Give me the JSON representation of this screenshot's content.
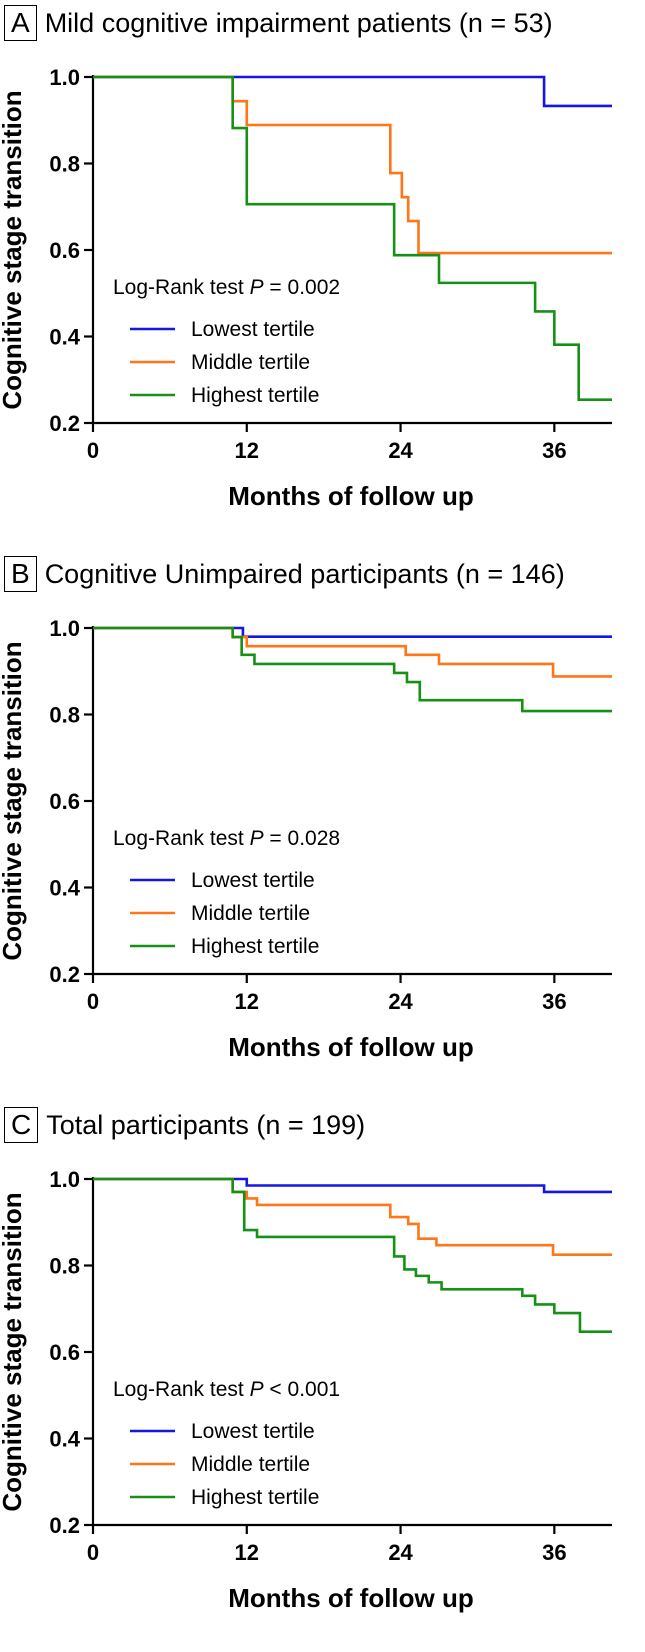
{
  "colors": {
    "lowest": "#1515e8",
    "middle": "#ff7518",
    "highest": "#169116"
  },
  "chart_data": [
    {
      "type": "line",
      "subtype": "kaplan-meier step",
      "panel_label": "A",
      "title": "Mild cognitive impairment patients (n = 53)",
      "xlabel": "Months of follow up",
      "ylabel": "Cognitive stage transition",
      "xlim": [
        0,
        40.5
      ],
      "ylim": [
        0.2,
        1.0
      ],
      "x_ticks": [
        0,
        12,
        24,
        36
      ],
      "y_ticks": [
        0.2,
        0.4,
        0.6,
        0.8,
        1.0
      ],
      "y_tick_labels": [
        "0.2",
        "0.4",
        "0.6",
        "0.8",
        "1.0"
      ],
      "legend_title_prefix": "Log-Rank test ",
      "legend_p": "P",
      "legend_title_value": " = 0.002",
      "series": [
        {
          "name": "Lowest tertile",
          "color_key": "lowest",
          "x": [
            0,
            35.2,
            40.5
          ],
          "y": [
            1.0,
            0.933,
            0.933
          ]
        },
        {
          "name": "Middle tertile",
          "color_key": "middle",
          "x": [
            0,
            10.9,
            11.4,
            12.0,
            23.2,
            24.1,
            24.6,
            25.4,
            40.5
          ],
          "y": [
            1.0,
            0.944,
            0.944,
            0.889,
            0.778,
            0.722,
            0.667,
            0.593,
            0.593
          ]
        },
        {
          "name": "Highest tertile",
          "color_key": "highest",
          "x": [
            0,
            10.9,
            12.0,
            23.5,
            27.0,
            34.5,
            36.0,
            37.9,
            40.5
          ],
          "y": [
            1.0,
            0.882,
            0.706,
            0.588,
            0.524,
            0.458,
            0.381,
            0.254,
            0.254
          ]
        }
      ]
    },
    {
      "type": "line",
      "subtype": "kaplan-meier step",
      "panel_label": "B",
      "title": "Cognitive Unimpaired participants (n = 146)",
      "xlabel": "Months of follow up",
      "ylabel": "Cognitive stage transition",
      "xlim": [
        0,
        40.5
      ],
      "ylim": [
        0.2,
        1.0
      ],
      "x_ticks": [
        0,
        12,
        24,
        36
      ],
      "y_ticks": [
        0.2,
        0.4,
        0.6,
        0.8,
        1.0
      ],
      "y_tick_labels": [
        "0.2",
        "0.4",
        "0.6",
        "0.8",
        "1.0"
      ],
      "legend_title_prefix": "Log-Rank test ",
      "legend_p": "P",
      "legend_title_value": " = 0.028",
      "series": [
        {
          "name": "Lowest tertile",
          "color_key": "lowest",
          "x": [
            0,
            11.7,
            40.5
          ],
          "y": [
            1.0,
            0.98,
            0.98
          ]
        },
        {
          "name": "Middle tertile",
          "color_key": "middle",
          "x": [
            0,
            10.9,
            12.0,
            12.8,
            24.4,
            27.0,
            35.9,
            40.5
          ],
          "y": [
            1.0,
            0.979,
            0.958,
            0.958,
            0.938,
            0.917,
            0.888,
            0.888
          ]
        },
        {
          "name": "Highest tertile",
          "color_key": "highest",
          "x": [
            0,
            10.9,
            11.6,
            12.6,
            18.5,
            23.5,
            24.5,
            25.5,
            33.5,
            40.5
          ],
          "y": [
            1.0,
            0.979,
            0.938,
            0.917,
            0.917,
            0.896,
            0.875,
            0.833,
            0.808,
            0.808
          ]
        }
      ]
    },
    {
      "type": "line",
      "subtype": "kaplan-meier step",
      "panel_label": "C",
      "title": "Total participants (n = 199)",
      "xlabel": "Months of follow up",
      "ylabel": "Cognitive stage transition",
      "xlim": [
        0,
        40.5
      ],
      "ylim": [
        0.2,
        1.0
      ],
      "x_ticks": [
        0,
        12,
        24,
        36
      ],
      "y_ticks": [
        0.2,
        0.4,
        0.6,
        0.8,
        1.0
      ],
      "y_tick_labels": [
        "0.2",
        "0.4",
        "0.6",
        "0.8",
        "1.0"
      ],
      "legend_title_prefix": "Log-Rank test ",
      "legend_p": "P",
      "legend_title_value": " < 0.001",
      "series": [
        {
          "name": "Lowest tertile",
          "color_key": "lowest",
          "x": [
            0,
            12.0,
            35.2,
            40.5
          ],
          "y": [
            1.0,
            0.985,
            0.97,
            0.97
          ]
        },
        {
          "name": "Middle tertile",
          "color_key": "middle",
          "x": [
            0,
            10.9,
            12.0,
            12.8,
            23.2,
            24.6,
            25.4,
            26.8,
            35.9,
            40.5
          ],
          "y": [
            1.0,
            0.97,
            0.955,
            0.94,
            0.912,
            0.896,
            0.862,
            0.847,
            0.825,
            0.825
          ]
        },
        {
          "name": "Highest tertile",
          "color_key": "highest",
          "x": [
            0,
            10.9,
            11.8,
            12.8,
            23.5,
            24.3,
            25.2,
            26.2,
            27.2,
            33.5,
            34.5,
            36.0,
            38.0,
            40.5
          ],
          "y": [
            1.0,
            0.97,
            0.882,
            0.866,
            0.821,
            0.791,
            0.776,
            0.761,
            0.745,
            0.73,
            0.71,
            0.69,
            0.647,
            0.647
          ]
        }
      ]
    }
  ]
}
